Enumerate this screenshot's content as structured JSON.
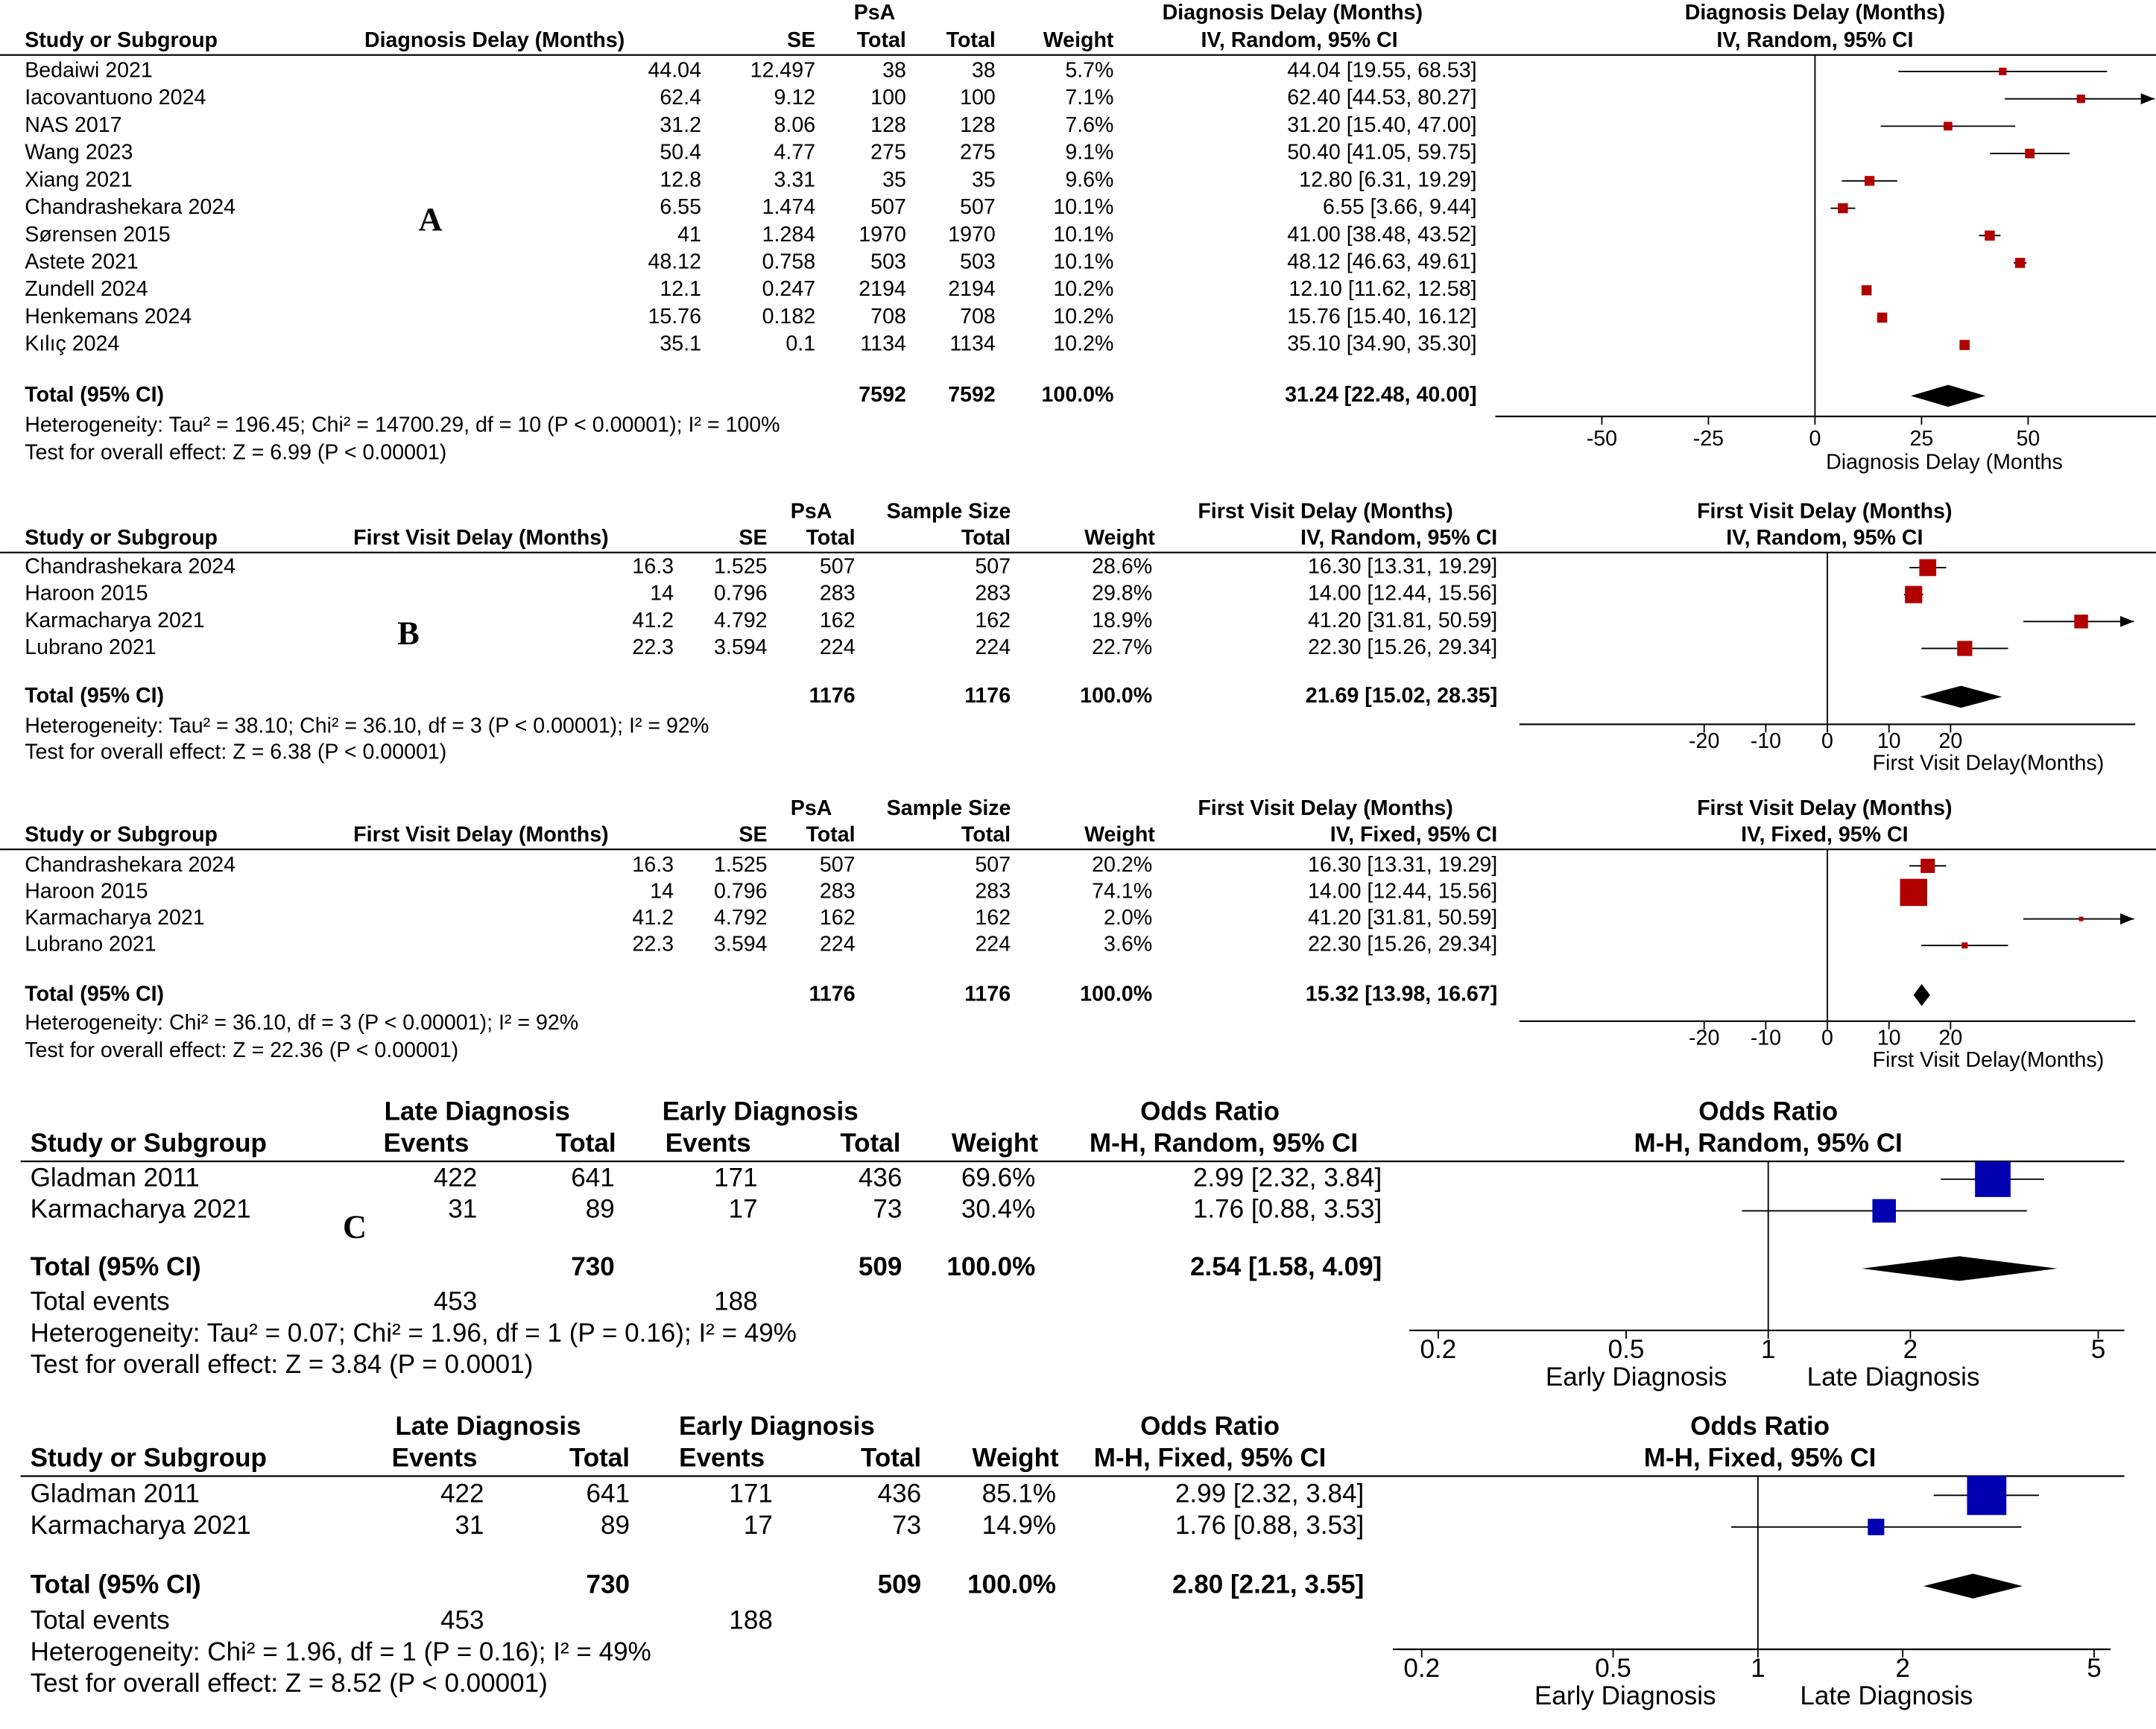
{
  "chart_data": [
    {
      "type": "forest",
      "label": "A",
      "group_headers": [
        "PsA",
        "Diagnosis Delay (Months)"
      ],
      "columns": [
        "Study or Subgroup",
        "Diagnosis Delay (Months)",
        "SE",
        "Total",
        "Total",
        "Weight",
        "IV, Random, 95% CI"
      ],
      "rows": [
        [
          "Bedaiwi 2021",
          44.04,
          12.497,
          38,
          38,
          "5.7%",
          "44.04 [19.55, 68.53]"
        ],
        [
          "Iacovantuono 2024",
          62.4,
          9.12,
          100,
          100,
          "7.1%",
          "62.40 [44.53, 80.27]"
        ],
        [
          "NAS 2017",
          31.2,
          8.06,
          128,
          128,
          "7.6%",
          "31.20 [15.40, 47.00]"
        ],
        [
          "Wang 2023",
          50.4,
          4.77,
          275,
          275,
          "9.1%",
          "50.40 [41.05, 59.75]"
        ],
        [
          "Xiang 2021",
          12.8,
          3.31,
          35,
          35,
          "9.6%",
          "12.80 [6.31, 19.29]"
        ],
        [
          "Chandrashekara 2024",
          6.55,
          1.474,
          507,
          507,
          "10.1%",
          "6.55 [3.66, 9.44]"
        ],
        [
          "Sørensen 2015",
          41,
          1.284,
          1970,
          1970,
          "10.1%",
          "41.00 [38.48, 43.52]"
        ],
        [
          "Astete 2021",
          48.12,
          0.758,
          503,
          503,
          "10.1%",
          "48.12 [46.63, 49.61]"
        ],
        [
          "Zundell 2024",
          12.1,
          0.247,
          2194,
          2194,
          "10.2%",
          "12.10 [11.62, 12.58]"
        ],
        [
          "Henkemans 2024",
          15.76,
          0.182,
          708,
          708,
          "10.2%",
          "15.76 [15.40, 16.12]"
        ],
        [
          "Kılıç 2024",
          35.1,
          0.1,
          1134,
          1134,
          "10.2%",
          "35.10 [34.90, 35.30]"
        ]
      ],
      "estimate": [
        44.04,
        62.4,
        31.2,
        50.4,
        12.8,
        6.55,
        41,
        48.12,
        12.1,
        15.76,
        35.1
      ],
      "lower": [
        19.55,
        44.53,
        15.4,
        41.05,
        6.31,
        3.66,
        38.48,
        46.63,
        11.62,
        15.4,
        34.9
      ],
      "upper": [
        68.53,
        80.27,
        47,
        59.75,
        19.29,
        9.44,
        43.52,
        49.61,
        12.58,
        16.12,
        35.3
      ],
      "weight": [
        5.7,
        7.1,
        7.6,
        9.1,
        9.6,
        10.1,
        10.1,
        10.1,
        10.2,
        10.2,
        10.2
      ],
      "total_row": [
        "Total (95% CI)",
        null,
        null,
        7592,
        7592,
        "100.0%",
        "31.24 [22.48, 40.00]"
      ],
      "total_estimate": 31.24,
      "total_lower": 22.48,
      "total_upper": 40,
      "heterogeneity": "Heterogeneity: Tau² = 196.45; Chi² = 14700.29, df = 10 (P < 0.00001); I² = 100%",
      "overall_effect": "Test for overall effect: Z = 6.99 (P < 0.00001)",
      "plot_title": "Diagnosis Delay (Months)",
      "plot_method": "IV, Random, 95% CI",
      "xlim": [
        -75,
        80
      ],
      "xticks": [
        -50,
        -25,
        0,
        25,
        50
      ],
      "log_scale": false,
      "xlabel": "Diagnosis Delay (Months",
      "color": "#b00000"
    },
    {
      "type": "forest",
      "label": "B",
      "group_headers": [
        "PsA",
        "Sample Size",
        "First Visit Delay (Months)"
      ],
      "columns": [
        "Study or Subgroup",
        "First Visit Delay (Months)",
        "SE",
        "Total",
        "Total",
        "Weight",
        "IV, Random, 95% CI"
      ],
      "rows": [
        [
          "Chandrashekara 2024",
          16.3,
          1.525,
          507,
          507,
          "28.6%",
          "16.30 [13.31, 19.29]"
        ],
        [
          "Haroon 2015",
          14,
          0.796,
          283,
          283,
          "29.8%",
          "14.00 [12.44, 15.56]"
        ],
        [
          "Karmacharya 2021",
          41.2,
          4.792,
          162,
          162,
          "18.9%",
          "41.20 [31.81, 50.59]"
        ],
        [
          "Lubrano 2021",
          22.3,
          3.594,
          224,
          224,
          "22.7%",
          "22.30 [15.26, 29.34]"
        ]
      ],
      "estimate": [
        16.3,
        14,
        41.2,
        22.3
      ],
      "lower": [
        13.31,
        12.44,
        31.81,
        15.26
      ],
      "upper": [
        19.29,
        15.56,
        50.59,
        29.34
      ],
      "weight": [
        28.6,
        29.8,
        18.9,
        22.7
      ],
      "total_row": [
        "Total (95% CI)",
        null,
        null,
        1176,
        1176,
        "100.0%",
        "21.69 [15.02, 28.35]"
      ],
      "total_estimate": 21.69,
      "total_lower": 15.02,
      "total_upper": 28.35,
      "heterogeneity": "Heterogeneity: Tau² = 38.10; Chi² = 36.10, df = 3 (P < 0.00001); I² = 92%",
      "overall_effect": "Test for overall effect: Z = 6.38 (P < 0.00001)",
      "plot_title": "First Visit Delay (Months)",
      "plot_method": "IV, Random, 95% CI",
      "xlim": [
        -50,
        50
      ],
      "xticks": [
        -20,
        -10,
        0,
        10,
        20
      ],
      "log_scale": false,
      "xlabel": "First Visit Delay(Months)",
      "color": "#b00000"
    },
    {
      "type": "forest",
      "group_headers": [
        "PsA",
        "Sample Size",
        "First Visit Delay (Months)"
      ],
      "columns": [
        "Study or Subgroup",
        "First Visit Delay (Months)",
        "SE",
        "Total",
        "Total",
        "Weight",
        "IV, Fixed, 95% CI"
      ],
      "rows": [
        [
          "Chandrashekara 2024",
          16.3,
          1.525,
          507,
          507,
          "20.2%",
          "16.30 [13.31, 19.29]"
        ],
        [
          "Haroon 2015",
          14,
          0.796,
          283,
          283,
          "74.1%",
          "14.00 [12.44, 15.56]"
        ],
        [
          "Karmacharya 2021",
          41.2,
          4.792,
          162,
          162,
          "2.0%",
          "41.20 [31.81, 50.59]"
        ],
        [
          "Lubrano 2021",
          22.3,
          3.594,
          224,
          224,
          "3.6%",
          "22.30 [15.26, 29.34]"
        ]
      ],
      "estimate": [
        16.3,
        14,
        41.2,
        22.3
      ],
      "lower": [
        13.31,
        12.44,
        31.81,
        15.26
      ],
      "upper": [
        19.29,
        15.56,
        50.59,
        29.34
      ],
      "weight": [
        20.2,
        74.1,
        2.0,
        3.6
      ],
      "total_row": [
        "Total (95% CI)",
        null,
        null,
        1176,
        1176,
        "100.0%",
        "15.32 [13.98, 16.67]"
      ],
      "total_estimate": 15.32,
      "total_lower": 13.98,
      "total_upper": 16.67,
      "heterogeneity": "Heterogeneity: Chi² = 36.10, df = 3 (P < 0.00001); I² = 92%",
      "overall_effect": "Test for overall effect: Z = 22.36 (P < 0.00001)",
      "plot_title": "First Visit Delay (Months)",
      "plot_method": "IV, Fixed, 95% CI",
      "xlim": [
        -50,
        50
      ],
      "xticks": [
        -20,
        -10,
        0,
        10,
        20
      ],
      "log_scale": false,
      "xlabel": "First Visit Delay(Months)",
      "color": "#b00000"
    },
    {
      "type": "forest",
      "label": "C",
      "group_headers": [
        "Late Diagnosis",
        "Early Diagnosis",
        "Odds Ratio"
      ],
      "columns": [
        "Study or Subgroup",
        "Events",
        "Total",
        "Events",
        "Total",
        "Weight",
        "M-H, Random, 95% CI"
      ],
      "rows": [
        [
          "Gladman 2011",
          422,
          641,
          171,
          436,
          "69.6%",
          "2.99 [2.32, 3.84]"
        ],
        [
          "Karmacharya 2021",
          31,
          89,
          17,
          73,
          "30.4%",
          "1.76 [0.88, 3.53]"
        ]
      ],
      "estimate": [
        2.99,
        1.76
      ],
      "lower": [
        2.32,
        0.88
      ],
      "upper": [
        3.84,
        3.53
      ],
      "weight": [
        69.6,
        30.4
      ],
      "total_row": [
        "Total (95% CI)",
        null,
        730,
        null,
        509,
        "100.0%",
        "2.54 [1.58, 4.09]"
      ],
      "total_events": [
        "Total events",
        453,
        null,
        188
      ],
      "total_estimate": 2.54,
      "total_lower": 1.58,
      "total_upper": 4.09,
      "heterogeneity": "Heterogeneity: Tau² = 0.07; Chi² = 1.96, df = 1 (P = 0.16); I² = 49%",
      "overall_effect": "Test for overall effect: Z = 3.84 (P = 0.0001)",
      "plot_title": "Odds Ratio",
      "plot_method": "M-H, Random, 95% CI",
      "xlim": [
        0.2,
        5
      ],
      "xticks": [
        0.2,
        0.5,
        1,
        2,
        5
      ],
      "log_scale": true,
      "favours": [
        "Early Diagnosis",
        "Late Diagnosis"
      ],
      "color": "#0000b0"
    },
    {
      "type": "forest",
      "group_headers": [
        "Late Diagnosis",
        "Early Diagnosis",
        "Odds Ratio"
      ],
      "columns": [
        "Study or Subgroup",
        "Events",
        "Total",
        "Events",
        "Total",
        "Weight",
        "M-H, Fixed, 95% CI"
      ],
      "rows": [
        [
          "Gladman 2011",
          422,
          641,
          171,
          436,
          "85.1%",
          "2.99 [2.32, 3.84]"
        ],
        [
          "Karmacharya 2021",
          31,
          89,
          17,
          73,
          "14.9%",
          "1.76 [0.88, 3.53]"
        ]
      ],
      "estimate": [
        2.99,
        1.76
      ],
      "lower": [
        2.32,
        0.88
      ],
      "upper": [
        3.84,
        3.53
      ],
      "weight": [
        85.1,
        14.9
      ],
      "total_row": [
        "Total (95% CI)",
        null,
        730,
        null,
        509,
        "100.0%",
        "2.80 [2.21, 3.55]"
      ],
      "total_events": [
        "Total events",
        453,
        null,
        188
      ],
      "total_estimate": 2.8,
      "total_lower": 2.21,
      "total_upper": 3.55,
      "heterogeneity": "Heterogeneity: Chi² = 1.96, df = 1 (P = 0.16); I² = 49%",
      "overall_effect": "Test for overall effect: Z = 8.52 (P < 0.00001)",
      "plot_title": "Odds Ratio",
      "plot_method": "M-H, Fixed, 95% CI",
      "xlim": [
        0.2,
        5
      ],
      "xticks": [
        0.2,
        0.5,
        1,
        2,
        5
      ],
      "log_scale": true,
      "favours": [
        "Early Diagnosis",
        "Late Diagnosis"
      ],
      "color": "#0000b0"
    }
  ]
}
